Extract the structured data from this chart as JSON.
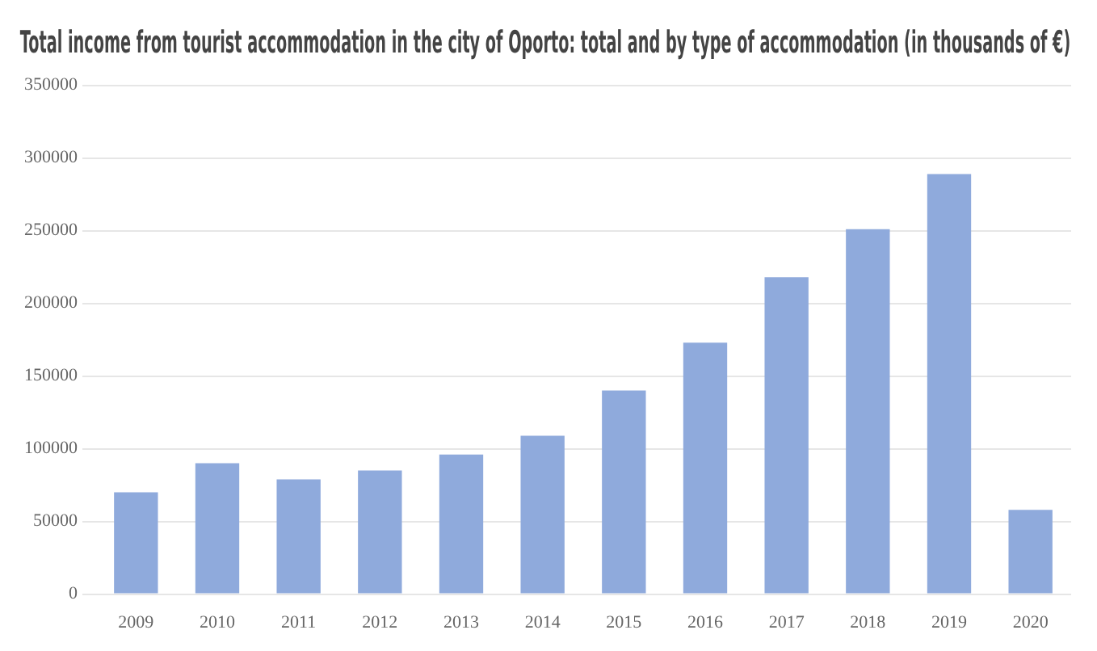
{
  "chart_data": {
    "type": "bar",
    "title": "Total income from tourist accommodation in the city of Oporto: total and by type of accommodation (in thousands of €)",
    "categories": [
      "2009",
      "2010",
      "2011",
      "2012",
      "2013",
      "2014",
      "2015",
      "2016",
      "2017",
      "2018",
      "2019",
      "2020"
    ],
    "values": [
      70000,
      90000,
      79000,
      85000,
      96000,
      109000,
      140000,
      173000,
      218000,
      251000,
      289000,
      58000
    ],
    "color": "#8faadc",
    "ylim": [
      0,
      350000
    ],
    "yticks": [
      0,
      50000,
      100000,
      150000,
      200000,
      250000,
      300000,
      350000
    ],
    "grid": "y"
  }
}
